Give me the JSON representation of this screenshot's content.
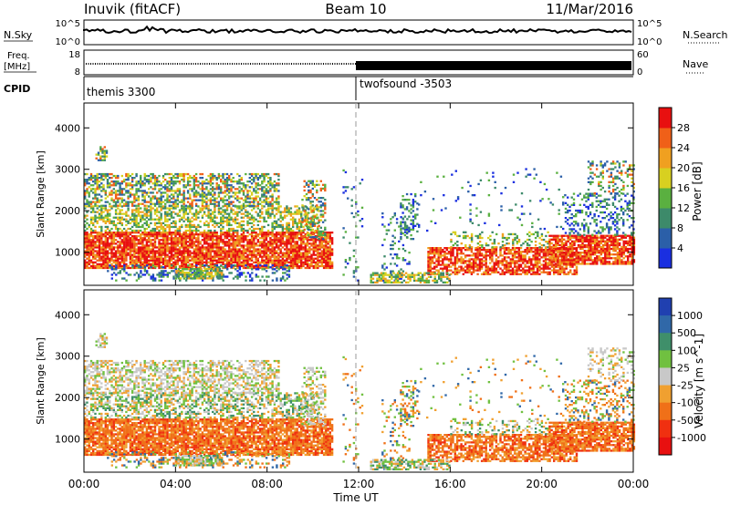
{
  "header": {
    "station": "Inuvik (fitACF)",
    "beam": "Beam 10",
    "date": "11/Mar/2016"
  },
  "top_panels": {
    "nsky_label": "N.Sky",
    "nsky_ticks": [
      "10^5",
      "10^0"
    ],
    "nsearch_label": "N.Search",
    "nsearch_ticks": [
      "10^5",
      "10^0"
    ],
    "freq_label": "Freq.",
    "freq_unit": "[MHz]",
    "freq_ticks": [
      "18",
      "8"
    ],
    "nave_label": "Nave",
    "nave_ticks": [
      "60",
      "0"
    ],
    "cpid_label": "CPID",
    "cpid_segments": [
      {
        "name": "themis 3300",
        "start_hour": 0
      },
      {
        "name": "twofsound -3503",
        "start_hour": 12
      }
    ]
  },
  "chart_data": [
    {
      "type": "heatmap",
      "name": "power",
      "ylabel": "Slant Range [km]",
      "xlabel": "",
      "ylim": [
        200,
        4600
      ],
      "yticks": [
        "1000",
        "2000",
        "3000",
        "4000"
      ],
      "x_ticks": [
        "00:00",
        "04:00",
        "08:00",
        "12:00",
        "16:00",
        "20:00",
        "00:00"
      ],
      "colorbar_label": "Power [dB]",
      "colorbar_ticks": [
        "4",
        "8",
        "12",
        "16",
        "20",
        "24",
        "28"
      ],
      "colorbar_colors": [
        "#1a2fe0",
        "#2b5fa8",
        "#3d8a6a",
        "#5ab040",
        "#d8d020",
        "#f0a020",
        "#f06018",
        "#e81010"
      ]
    },
    {
      "type": "heatmap",
      "name": "velocity",
      "ylabel": "Slant Range [km]",
      "xlabel": "Time UT",
      "ylim": [
        200,
        4600
      ],
      "yticks": [
        "1000",
        "2000",
        "3000",
        "4000"
      ],
      "x_ticks": [
        "00:00",
        "04:00",
        "08:00",
        "12:00",
        "16:00",
        "20:00",
        "00:00"
      ],
      "colorbar_label": "Velocity [m s^-1]",
      "colorbar_ticks": [
        "1000",
        "500",
        "100",
        "25",
        "-25",
        "-100",
        "-500",
        "-1000"
      ],
      "colorbar_colors": [
        "#2040b0",
        "#3068a8",
        "#3f8f6a",
        "#70c040",
        "#c8c8c8",
        "#f0a030",
        "#f07018",
        "#f03010",
        "#e81010"
      ]
    }
  ],
  "colors": {
    "power_strong": "#e81010",
    "power_mid": "#f08a20",
    "power_weak": "#3d8a6a",
    "vel_ground": "#c8c8c8",
    "vel_neg": "#f07018",
    "vel_pos": "#3f8f6a"
  }
}
